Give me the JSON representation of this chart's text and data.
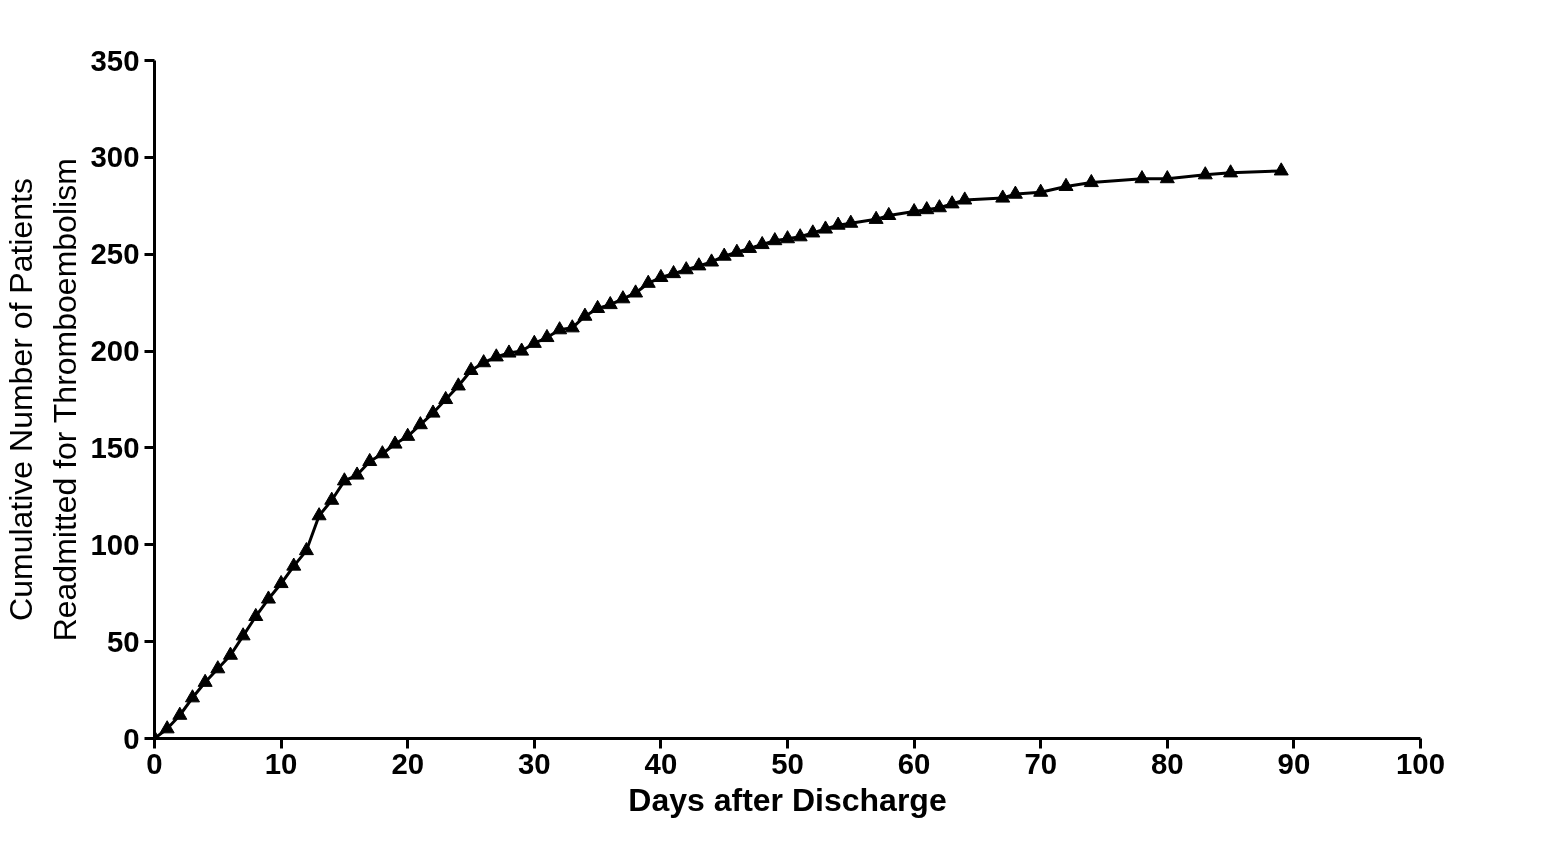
{
  "chart_data": {
    "type": "line",
    "xlabel": "Days after Discharge",
    "ylabel": "Cumulative Number of Patients\nReadmitted for Thromboembolism",
    "x": [
      0,
      1,
      2,
      3,
      4,
      5,
      6,
      7,
      8,
      9,
      10,
      11,
      12,
      13,
      14,
      15,
      16,
      17,
      18,
      19,
      20,
      21,
      22,
      23,
      24,
      25,
      26,
      27,
      28,
      29,
      30,
      31,
      32,
      33,
      34,
      35,
      36,
      37,
      38,
      39,
      40,
      41,
      42,
      43,
      44,
      45,
      46,
      47,
      48,
      49,
      50,
      51,
      52,
      53,
      54,
      55,
      57,
      58,
      60,
      61,
      62,
      63,
      64,
      67,
      68,
      70,
      72,
      74,
      78,
      80,
      83,
      85,
      89
    ],
    "series": [
      {
        "color": "#000000",
        "values": [
          0,
          5,
          12,
          21,
          29,
          36,
          43,
          53,
          63,
          72,
          80,
          89,
          97,
          115,
          123,
          133,
          136,
          143,
          147,
          152,
          156,
          162,
          168,
          175,
          182,
          190,
          194,
          197,
          199,
          200,
          204,
          207,
          211,
          212,
          218,
          222,
          224,
          227,
          230,
          235,
          238,
          240,
          242,
          244,
          246,
          249,
          251,
          253,
          255,
          257,
          258,
          259,
          261,
          263,
          265,
          266,
          268,
          270,
          272,
          273,
          274,
          276,
          278,
          279,
          281,
          282,
          285,
          287,
          289,
          289,
          291,
          292,
          293
        ]
      }
    ],
    "xlim": [
      0,
      100
    ],
    "xticks": [
      0,
      10,
      20,
      30,
      40,
      50,
      60,
      70,
      80,
      90,
      100
    ],
    "ylim": [
      0,
      350
    ],
    "yticks": [
      0,
      50,
      100,
      150,
      200,
      250,
      300,
      350
    ],
    "grid": false,
    "marker": "triangle",
    "line_style": "solid"
  }
}
